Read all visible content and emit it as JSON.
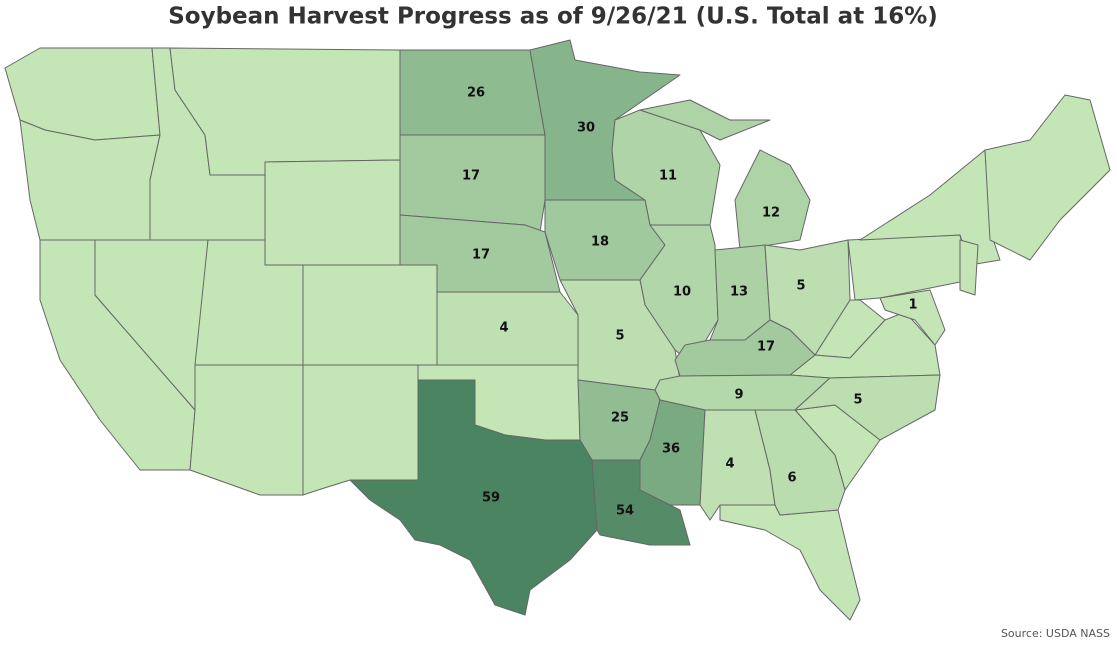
{
  "title": "Soybean Harvest Progress as of 9/26/21 (U.S. Total at 16%)",
  "source": "Source: USDA NASS",
  "map": {
    "type": "choropleth",
    "values": [
      26,
      30,
      17,
      11,
      12,
      17,
      18,
      10,
      13,
      5,
      4,
      5,
      17,
      9,
      5,
      25,
      36,
      4,
      6,
      59,
      54,
      1
    ],
    "color_low": "#c4e5b6",
    "color_high": "#4a8460"
  }
}
